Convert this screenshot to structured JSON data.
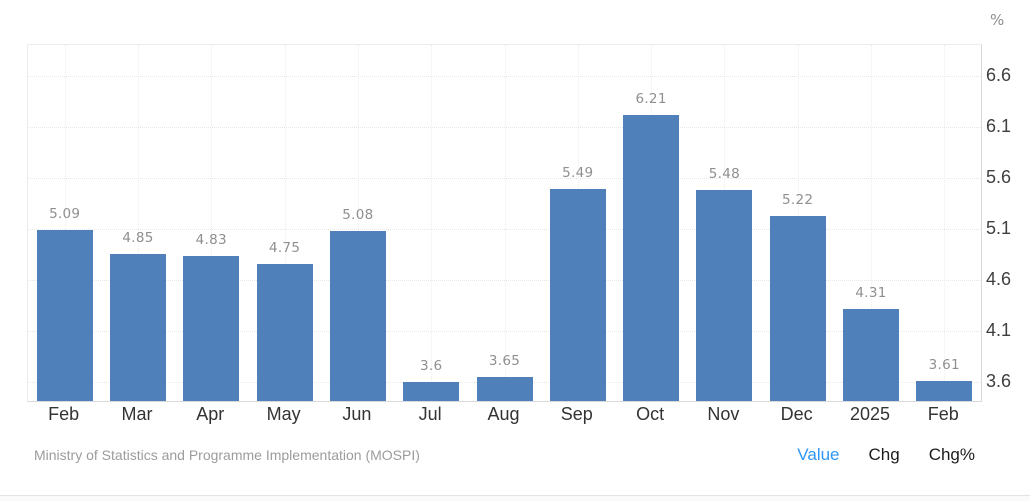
{
  "widget": {
    "unit_label": "%",
    "source": "Ministry of Statistics and Programme Implementation (MOSPI)",
    "toggles": [
      {
        "label": "Value",
        "active": true
      },
      {
        "label": "Chg",
        "active": false
      },
      {
        "label": "Chg%",
        "active": false
      }
    ]
  },
  "colors": {
    "bar": "#4f80ba",
    "toggle_active": "#2e96f3",
    "toggle_inactive": "#1c1c1c",
    "data_label": "#8f8f8f",
    "axis_label": "#3f3f3f",
    "gridline": "#e7e7e7",
    "source_text": "#9c9c9c"
  },
  "chart_data": {
    "type": "bar",
    "title": "",
    "xlabel": "",
    "ylabel": "%",
    "categories": [
      "Feb",
      "Mar",
      "Apr",
      "May",
      "Jun",
      "Jul",
      "Aug",
      "Sep",
      "Oct",
      "Nov",
      "Dec",
      "2025",
      "Feb"
    ],
    "values": [
      5.09,
      4.85,
      4.83,
      4.75,
      5.08,
      3.6,
      3.65,
      5.49,
      6.21,
      5.48,
      5.22,
      4.31,
      3.61
    ],
    "data_labels": [
      "5.09",
      "4.85",
      "4.83",
      "4.75",
      "5.08",
      "3.6",
      "3.65",
      "5.49",
      "6.21",
      "5.48",
      "5.22",
      "4.31",
      "3.61"
    ],
    "yticks": [
      6.6,
      6.1,
      5.6,
      5.1,
      4.6,
      4.1,
      3.6
    ],
    "ylim": [
      3.41,
      6.9
    ],
    "grid": true,
    "legend": null,
    "yaxis_position": "right",
    "source": "Ministry of Statistics and Programme Implementation (MOSPI)"
  }
}
